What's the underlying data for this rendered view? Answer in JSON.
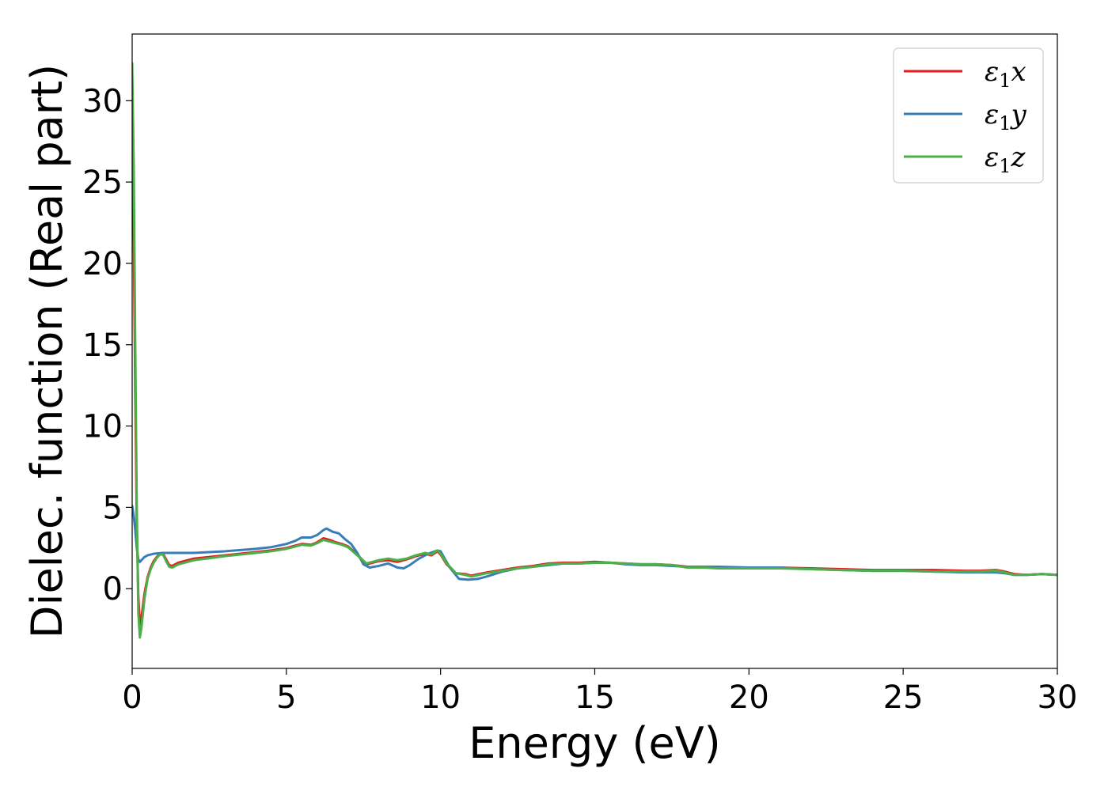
{
  "chart_data": {
    "type": "line",
    "xlabel": "Energy (eV)",
    "ylabel": "Dielec. function (Real part)",
    "xlim": [
      0,
      30
    ],
    "ylim": [
      -4.9,
      34.1
    ],
    "xticks": [
      0,
      5,
      10,
      15,
      20,
      25,
      30
    ],
    "yticks": [
      0,
      5,
      10,
      15,
      20,
      25,
      30
    ],
    "grid": false,
    "legend_position": "top-right",
    "series": [
      {
        "name": "ε₁x",
        "legend_symbol": "ε",
        "legend_sub": "1",
        "legend_suffix": "x",
        "color": "#e41a1c",
        "x": [
          0.0,
          0.05,
          0.1,
          0.15,
          0.2,
          0.25,
          0.3,
          0.4,
          0.5,
          0.6,
          0.7,
          0.8,
          0.9,
          1.0,
          1.1,
          1.2,
          1.3,
          1.5,
          2.0,
          3.0,
          4.0,
          4.5,
          5.0,
          5.3,
          5.5,
          5.8,
          6.0,
          6.2,
          6.4,
          6.6,
          6.8,
          7.0,
          7.3,
          7.6,
          8.0,
          8.3,
          8.6,
          8.9,
          9.2,
          9.5,
          9.7,
          9.9,
          10.0,
          10.2,
          10.5,
          10.8,
          11.0,
          11.5,
          12.0,
          12.5,
          13.0,
          13.5,
          14.0,
          14.5,
          15.0,
          15.5,
          16.0,
          16.5,
          17.0,
          17.5,
          18.0,
          18.5,
          19.0,
          20.0,
          21.0,
          22.0,
          23.0,
          24.0,
          25.0,
          26.0,
          27.0,
          27.5,
          28.0,
          28.3,
          28.6,
          29.0,
          29.5,
          30.0
        ],
        "y": [
          30.0,
          22.0,
          12.0,
          4.0,
          -0.5,
          -2.2,
          -1.8,
          -0.3,
          0.7,
          1.3,
          1.7,
          1.95,
          2.15,
          2.15,
          1.8,
          1.45,
          1.4,
          1.6,
          1.85,
          2.05,
          2.25,
          2.35,
          2.5,
          2.65,
          2.75,
          2.7,
          2.85,
          3.1,
          3.0,
          2.85,
          2.75,
          2.6,
          2.1,
          1.5,
          1.7,
          1.75,
          1.65,
          1.8,
          2.0,
          2.15,
          2.05,
          2.3,
          2.1,
          1.5,
          0.95,
          0.9,
          0.8,
          1.0,
          1.15,
          1.3,
          1.4,
          1.55,
          1.6,
          1.6,
          1.65,
          1.6,
          1.55,
          1.5,
          1.5,
          1.45,
          1.35,
          1.35,
          1.3,
          1.3,
          1.3,
          1.25,
          1.2,
          1.15,
          1.15,
          1.15,
          1.1,
          1.1,
          1.15,
          1.05,
          0.9,
          0.85,
          0.9,
          0.85
        ]
      },
      {
        "name": "ε₁y",
        "legend_symbol": "ε",
        "legend_sub": "1",
        "legend_suffix": "y",
        "color": "#377eb8",
        "x": [
          0.0,
          0.05,
          0.1,
          0.15,
          0.2,
          0.25,
          0.3,
          0.4,
          0.5,
          0.7,
          1.0,
          1.5,
          2.0,
          3.0,
          4.0,
          4.5,
          5.0,
          5.3,
          5.5,
          5.8,
          6.0,
          6.2,
          6.3,
          6.5,
          6.7,
          6.9,
          7.1,
          7.3,
          7.5,
          7.7,
          8.0,
          8.3,
          8.6,
          8.8,
          9.0,
          9.3,
          9.6,
          9.9,
          10.0,
          10.3,
          10.6,
          10.9,
          11.2,
          11.5,
          12.0,
          12.5,
          13.0,
          13.5,
          14.0,
          14.5,
          15.0,
          15.5,
          16.0,
          16.5,
          17.0,
          17.5,
          18.0,
          18.5,
          19.0,
          20.0,
          21.0,
          22.0,
          23.0,
          24.0,
          25.0,
          26.0,
          27.0,
          27.5,
          28.0,
          28.3,
          28.6,
          29.0,
          29.5,
          30.0
        ],
        "y": [
          5.1,
          4.5,
          3.6,
          2.5,
          1.8,
          1.65,
          1.75,
          1.95,
          2.05,
          2.15,
          2.2,
          2.2,
          2.2,
          2.3,
          2.45,
          2.55,
          2.75,
          2.95,
          3.15,
          3.15,
          3.3,
          3.6,
          3.7,
          3.5,
          3.4,
          3.05,
          2.75,
          2.2,
          1.5,
          1.3,
          1.4,
          1.55,
          1.3,
          1.25,
          1.45,
          1.85,
          2.15,
          2.35,
          2.3,
          1.3,
          0.6,
          0.55,
          0.6,
          0.75,
          1.05,
          1.25,
          1.35,
          1.45,
          1.55,
          1.55,
          1.6,
          1.6,
          1.5,
          1.45,
          1.45,
          1.4,
          1.35,
          1.35,
          1.35,
          1.3,
          1.3,
          1.2,
          1.15,
          1.1,
          1.1,
          1.05,
          1.0,
          1.0,
          1.0,
          0.95,
          0.85,
          0.85,
          0.9,
          0.85
        ]
      },
      {
        "name": "ε₁z",
        "legend_symbol": "ε",
        "legend_sub": "1",
        "legend_suffix": "z",
        "color": "#4daf4a",
        "x": [
          0.0,
          0.05,
          0.1,
          0.15,
          0.2,
          0.25,
          0.3,
          0.4,
          0.5,
          0.6,
          0.7,
          0.8,
          0.9,
          1.0,
          1.1,
          1.2,
          1.3,
          1.5,
          2.0,
          3.0,
          4.0,
          4.5,
          5.0,
          5.3,
          5.5,
          5.8,
          6.0,
          6.2,
          6.4,
          6.6,
          6.8,
          7.0,
          7.3,
          7.6,
          8.0,
          8.3,
          8.6,
          8.9,
          9.2,
          9.5,
          9.7,
          9.9,
          10.0,
          10.2,
          10.5,
          10.8,
          11.0,
          11.5,
          12.0,
          12.5,
          13.0,
          13.5,
          14.0,
          14.5,
          15.0,
          15.5,
          16.0,
          16.5,
          17.0,
          17.5,
          18.0,
          18.5,
          19.0,
          20.0,
          21.0,
          22.0,
          23.0,
          24.0,
          25.0,
          26.0,
          27.0,
          27.5,
          28.0,
          28.3,
          28.6,
          29.0,
          29.5,
          30.0
        ],
        "y": [
          32.3,
          26.0,
          15.0,
          5.0,
          -1.5,
          -3.0,
          -2.4,
          -0.6,
          0.6,
          1.2,
          1.6,
          1.9,
          2.1,
          2.1,
          1.7,
          1.35,
          1.3,
          1.5,
          1.75,
          2.0,
          2.2,
          2.3,
          2.45,
          2.6,
          2.7,
          2.65,
          2.8,
          3.0,
          2.9,
          2.8,
          2.7,
          2.55,
          2.05,
          1.55,
          1.75,
          1.85,
          1.75,
          1.85,
          2.05,
          2.2,
          2.1,
          2.35,
          2.15,
          1.55,
          0.95,
          0.85,
          0.75,
          0.95,
          1.1,
          1.25,
          1.35,
          1.5,
          1.55,
          1.55,
          1.6,
          1.6,
          1.55,
          1.5,
          1.5,
          1.45,
          1.3,
          1.3,
          1.25,
          1.25,
          1.25,
          1.2,
          1.15,
          1.1,
          1.1,
          1.05,
          1.05,
          1.05,
          1.1,
          1.0,
          0.85,
          0.85,
          0.9,
          0.85
        ]
      }
    ]
  }
}
